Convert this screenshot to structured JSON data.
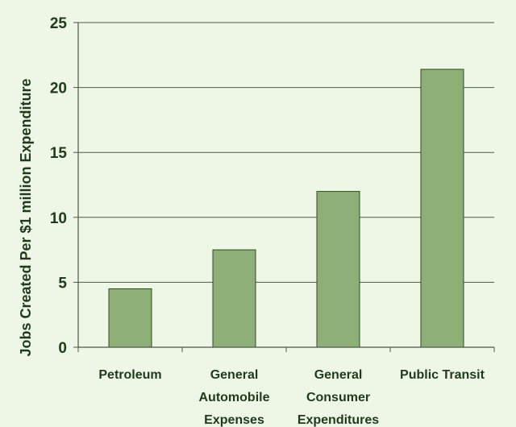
{
  "chart_data": {
    "type": "bar",
    "title": "",
    "xlabel": "",
    "ylabel": "Jobs Created Per $1 million Expenditure",
    "categories": [
      [
        "Petroleum"
      ],
      [
        "General",
        "Automobile",
        "Expenses"
      ],
      [
        "General",
        "Consumer",
        "Expenditures"
      ],
      [
        "Public Transit"
      ]
    ],
    "values": [
      4.5,
      7.5,
      12,
      21.4
    ],
    "ylim": [
      0,
      25
    ],
    "yticks": [
      0,
      5,
      10,
      15,
      20,
      25
    ],
    "grid": true,
    "colors": {
      "bar_fill": "#8eaf75",
      "bar_stroke": "#2f4a2a",
      "grid": "#4a5a45",
      "axis": "#4a5a45",
      "background": "#eef7e6"
    }
  }
}
